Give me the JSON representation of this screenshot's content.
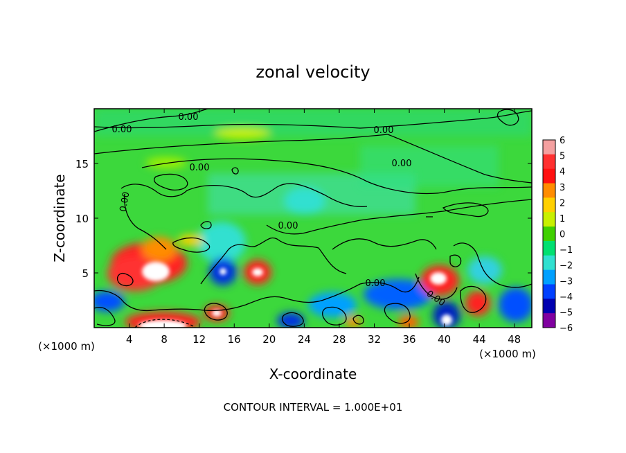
{
  "chart_data": {
    "type": "heatmap",
    "title": "zonal velocity",
    "xlabel": "X-coordinate",
    "ylabel": "Z-coordinate",
    "x_unit_left": "(×1000 m)",
    "x_unit_right": "(×1000 m)",
    "footer": "CONTOUR INTERVAL = 1.000E+01",
    "xlim": [
      0,
      50
    ],
    "ylim": [
      0,
      20
    ],
    "x_ticks": [
      "4",
      "8",
      "12",
      "16",
      "20",
      "24",
      "28",
      "32",
      "36",
      "40",
      "44",
      "48"
    ],
    "y_ticks": [
      "5",
      "10",
      "15"
    ],
    "contour_labels": [
      "0.00",
      "0.00",
      "0.00",
      "0.00",
      "0.00",
      "0.00",
      "0.00",
      "0.00",
      "0.00"
    ],
    "colorbar": {
      "min": -6,
      "max": 6,
      "ticks": [
        "6",
        "5",
        "4",
        "3",
        "2",
        "1",
        "0",
        "−1",
        "−2",
        "−3",
        "−4",
        "−5",
        "−6"
      ],
      "colors": [
        "#f4a0a0",
        "#ff3030",
        "#ff1010",
        "#ff8c00",
        "#ffd000",
        "#c8f000",
        "#40d000",
        "#00e070",
        "#30e0d0",
        "#00a0ff",
        "#0040ff",
        "#0000b0",
        "#8000a0"
      ]
    },
    "features": [
      {
        "x": 7,
        "z": 5,
        "value": 6
      },
      {
        "x": 8,
        "z": 1,
        "value": 6
      },
      {
        "x": 14.5,
        "z": 5,
        "value": -5
      },
      {
        "x": 18.5,
        "z": 5,
        "value": 5
      },
      {
        "x": 13.5,
        "z": 1.5,
        "value": 5
      },
      {
        "x": 39,
        "z": 4.5,
        "value": 6
      },
      {
        "x": 40,
        "z": 1,
        "value": -6
      },
      {
        "x": 43,
        "z": 2,
        "value": 4
      },
      {
        "x": 2,
        "z": 2.5,
        "value": -4
      },
      {
        "x": 10,
        "z": 8,
        "value": 3
      },
      {
        "x": 36,
        "z": 3,
        "value": -3
      },
      {
        "x": 31,
        "z": 3.5,
        "value": -3
      },
      {
        "x": 22,
        "z": 1,
        "value": -3
      },
      {
        "x": 48,
        "z": 3,
        "value": -3
      }
    ]
  }
}
